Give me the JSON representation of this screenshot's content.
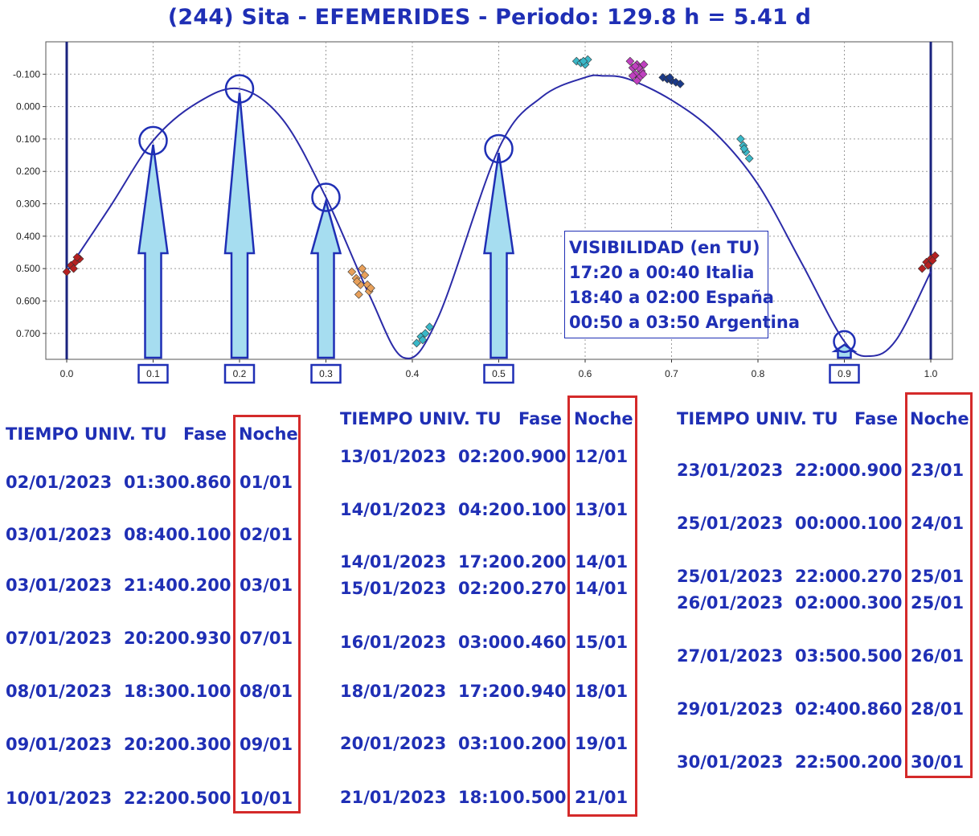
{
  "title": "(244) Sita - EFEMERIDES - Periodo: 129.8 h = 5.41 d",
  "visibility": {
    "heading": "VISIBILIDAD (en TU)",
    "lines": [
      "17:20 a 00:40 Italia",
      "18:40 a 02:00 España",
      "00:50 a 03:50 Argentina"
    ]
  },
  "colors": {
    "text": "#1f2fb5",
    "curve": "#2b2ba8",
    "arrow_fill": "#a6ddf0",
    "arrow_stroke": "#1f2fb5",
    "red_box": "#d42a2a"
  },
  "chart_data": {
    "type": "scatter",
    "title": "(244) Sita - EFEMERIDES - Periodo: 129.8 h = 5.41 d",
    "xlim": [
      0.0,
      1.0
    ],
    "ylim": [
      -0.2,
      0.78
    ],
    "y_inverted": true,
    "x_ticks": [
      "0.0",
      "0.1",
      "0.2",
      "0.3",
      "0.4",
      "0.5",
      "0.6",
      "0.7",
      "0.8",
      "0.9",
      "1.0"
    ],
    "y_ticks": [
      "-0.100",
      "0.000",
      "0.100",
      "0.200",
      "0.300",
      "0.400",
      "0.500",
      "0.600",
      "0.700"
    ],
    "grid": true,
    "curve": {
      "x": [
        0.0,
        0.05,
        0.1,
        0.15,
        0.2,
        0.25,
        0.3,
        0.35,
        0.39,
        0.43,
        0.5,
        0.55,
        0.6,
        0.62,
        0.65,
        0.7,
        0.75,
        0.8,
        0.85,
        0.9,
        0.93,
        0.96,
        1.0
      ],
      "y": [
        0.51,
        0.31,
        0.105,
        -0.01,
        -0.055,
        0.04,
        0.28,
        0.58,
        0.775,
        0.65,
        0.13,
        -0.03,
        -0.09,
        -0.095,
        -0.085,
        -0.02,
        0.08,
        0.24,
        0.48,
        0.725,
        0.77,
        0.72,
        0.51
      ]
    },
    "marked_phases": [
      0.1,
      0.2,
      0.3,
      0.5,
      0.9
    ],
    "vertical_lines": [
      0.0,
      1.0
    ],
    "series": [
      {
        "color": "#b52020",
        "points": [
          [
            0.0,
            0.51
          ],
          [
            0.005,
            0.49
          ],
          [
            0.01,
            0.48
          ],
          [
            0.015,
            0.47
          ],
          [
            0.008,
            0.5
          ],
          [
            0.012,
            0.465
          ]
        ]
      },
      {
        "color": "#b52020",
        "points": [
          [
            0.99,
            0.5
          ],
          [
            0.995,
            0.48
          ],
          [
            1.0,
            0.47
          ],
          [
            1.005,
            0.46
          ],
          [
            0.997,
            0.49
          ],
          [
            1.002,
            0.475
          ]
        ]
      },
      {
        "color": "#e8a05a",
        "points": [
          [
            0.33,
            0.51
          ],
          [
            0.335,
            0.53
          ],
          [
            0.34,
            0.55
          ],
          [
            0.345,
            0.52
          ],
          [
            0.35,
            0.57
          ],
          [
            0.338,
            0.58
          ],
          [
            0.342,
            0.5
          ],
          [
            0.348,
            0.55
          ],
          [
            0.336,
            0.54
          ],
          [
            0.352,
            0.56
          ]
        ]
      },
      {
        "color": "#3ab8c8",
        "points": [
          [
            0.405,
            0.73
          ],
          [
            0.41,
            0.71
          ],
          [
            0.415,
            0.7
          ],
          [
            0.42,
            0.68
          ],
          [
            0.412,
            0.72
          ]
        ]
      },
      {
        "color": "#3ab8c8",
        "points": [
          [
            0.59,
            -0.14
          ],
          [
            0.595,
            -0.135
          ],
          [
            0.6,
            -0.13
          ],
          [
            0.603,
            -0.145
          ],
          [
            0.598,
            -0.14
          ]
        ]
      },
      {
        "color": "#c040c0",
        "points": [
          [
            0.652,
            -0.14
          ],
          [
            0.655,
            -0.12
          ],
          [
            0.658,
            -0.1
          ],
          [
            0.66,
            -0.13
          ],
          [
            0.663,
            -0.09
          ],
          [
            0.665,
            -0.11
          ],
          [
            0.668,
            -0.13
          ],
          [
            0.66,
            -0.08
          ],
          [
            0.655,
            -0.095
          ],
          [
            0.667,
            -0.1
          ],
          [
            0.662,
            -0.12
          ],
          [
            0.658,
            -0.125
          ]
        ]
      },
      {
        "color": "#1a3a8a",
        "points": [
          [
            0.69,
            -0.09
          ],
          [
            0.695,
            -0.085
          ],
          [
            0.7,
            -0.08
          ],
          [
            0.705,
            -0.075
          ],
          [
            0.71,
            -0.07
          ],
          [
            0.698,
            -0.09
          ]
        ]
      },
      {
        "color": "#3ab8c8",
        "points": [
          [
            0.78,
            0.1
          ],
          [
            0.783,
            0.12
          ],
          [
            0.786,
            0.14
          ],
          [
            0.79,
            0.16
          ],
          [
            0.784,
            0.13
          ]
        ]
      }
    ]
  },
  "tables": [
    {
      "headers": {
        "time": "TIEMPO UNIV. TU",
        "phase": "Fase",
        "night": "Noche"
      },
      "rows": [
        {
          "date": "02/01/2023",
          "time": "01:30",
          "phase": "0.860",
          "night": "01/01"
        },
        {
          "date": "03/01/2023",
          "time": "08:40",
          "phase": "0.100",
          "night": "02/01"
        },
        {
          "date": "03/01/2023",
          "time": "21:40",
          "phase": "0.200",
          "night": "03/01"
        },
        {
          "date": "07/01/2023",
          "time": "20:20",
          "phase": "0.930",
          "night": "07/01"
        },
        {
          "date": "08/01/2023",
          "time": "18:30",
          "phase": "0.100",
          "night": "08/01"
        },
        {
          "date": "09/01/2023",
          "time": "20:20",
          "phase": "0.300",
          "night": "09/01"
        },
        {
          "date": "10/01/2023",
          "time": "22:20",
          "phase": "0.500",
          "night": "10/01"
        }
      ]
    },
    {
      "headers": {
        "time": "TIEMPO UNIV. TU",
        "phase": "Fase",
        "night": "Noche"
      },
      "rows": [
        {
          "date": "13/01/2023",
          "time": "02:20",
          "phase": "0.900",
          "night": "12/01"
        },
        {
          "date": "14/01/2023",
          "time": "04:20",
          "phase": "0.100",
          "night": "13/01"
        },
        {
          "date": "14/01/2023",
          "time": "17:20",
          "phase": "0.200",
          "night": "14/01"
        },
        {
          "date": "15/01/2023",
          "time": "02:20",
          "phase": "0.270",
          "night": "14/01"
        },
        {
          "date": "16/01/2023",
          "time": "03:00",
          "phase": "0.460",
          "night": "15/01"
        },
        {
          "date": "18/01/2023",
          "time": "17:20",
          "phase": "0.940",
          "night": "18/01"
        },
        {
          "date": "20/01/2023",
          "time": "03:10",
          "phase": "0.200",
          "night": "19/01"
        },
        {
          "date": "21/01/2023",
          "time": "18:10",
          "phase": "0.500",
          "night": "21/01"
        }
      ]
    },
    {
      "headers": {
        "time": "TIEMPO UNIV. TU",
        "phase": "Fase",
        "night": "Noche"
      },
      "rows": [
        {
          "date": "23/01/2023",
          "time": "22:00",
          "phase": "0.900",
          "night": "23/01"
        },
        {
          "date": "25/01/2023",
          "time": "00:00",
          "phase": "0.100",
          "night": "24/01"
        },
        {
          "date": "25/01/2023",
          "time": "22:00",
          "phase": "0.270",
          "night": "25/01"
        },
        {
          "date": "26/01/2023",
          "time": "02:00",
          "phase": "0.300",
          "night": "25/01"
        },
        {
          "date": "27/01/2023",
          "time": "03:50",
          "phase": "0.500",
          "night": "26/01"
        },
        {
          "date": "29/01/2023",
          "time": "02:40",
          "phase": "0.860",
          "night": "28/01"
        },
        {
          "date": "30/01/2023",
          "time": "22:50",
          "phase": "0.200",
          "night": "30/01"
        }
      ]
    }
  ]
}
